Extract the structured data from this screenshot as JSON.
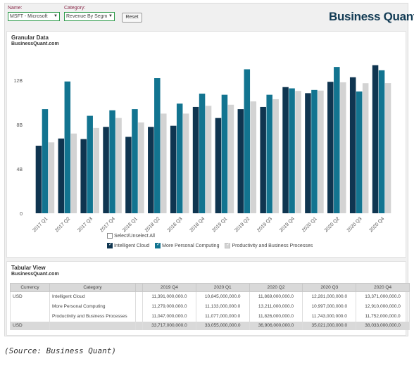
{
  "toolbar": {
    "name_label": "Name:",
    "name_value": "MSFT - Microsoft",
    "category_label": "Category:",
    "category_value": "Revenue By Segm",
    "reset_label": "Reset",
    "logo_text": "Business Quant"
  },
  "colors": {
    "intelligent_cloud": "#0f3550",
    "personal_computing": "#127490",
    "productivity": "#d3d3d3",
    "select_border": "#2e9a4a"
  },
  "chart_card": {
    "title": "Granular Data",
    "subtitle": "BusinessQuant.com",
    "select_all_label": "Select/Unselect All"
  },
  "chart_data": {
    "type": "bar",
    "title": "Granular Data",
    "categories": [
      "2017 Q1",
      "2017 Q2",
      "2017 Q3",
      "2017 Q4",
      "2018 Q1",
      "2018 Q2",
      "2018 Q3",
      "2018 Q4",
      "2019 Q1",
      "2019 Q2",
      "2019 Q3",
      "2019 Q4",
      "2020 Q1",
      "2020 Q2",
      "2020 Q3",
      "2020 Q4"
    ],
    "y_tick_labels": [
      "0",
      "4B",
      "8B",
      "12B"
    ],
    "y_ticks": [
      0,
      4000000000,
      8000000000,
      12000000000
    ],
    "ylim": [
      0,
      13600000000
    ],
    "legend_placement": "bottom",
    "series": [
      {
        "name": "Intelligent Cloud",
        "values": [
          6100000000,
          6750000000,
          6700000000,
          7800000000,
          6900000000,
          7800000000,
          7900000000,
          9600000000,
          8600000000,
          9400000000,
          9600000000,
          11391000000,
          10845000000,
          11869000000,
          12281000000,
          13371000000
        ]
      },
      {
        "name": "More Personal Computing",
        "values": [
          9400000000,
          11900000000,
          8800000000,
          9300000000,
          9400000000,
          12200000000,
          9900000000,
          10800000000,
          10700000000,
          13000000000,
          10700000000,
          11279000000,
          11133000000,
          13211000000,
          10997000000,
          12910000000
        ]
      },
      {
        "name": "Productivity and Business Processes",
        "values": [
          6400000000,
          7200000000,
          7700000000,
          8600000000,
          8200000000,
          9000000000,
          9000000000,
          9700000000,
          9800000000,
          10100000000,
          10300000000,
          11047000000,
          11077000000,
          11826000000,
          11743000000,
          11752000000
        ]
      }
    ]
  },
  "table_card": {
    "title": "Tabular View",
    "subtitle": "BusinessQuant.com",
    "headers": [
      "Currency",
      "Category",
      "",
      "2019 Q4",
      "2020 Q1",
      "2020 Q2",
      "2020 Q3",
      "2020 Q4"
    ],
    "rows": [
      {
        "currency": "USD",
        "category": "Intelligent Cloud",
        "values": [
          "11,391,000,000.0",
          "10,845,000,000.0",
          "11,869,000,000.0",
          "12,281,000,000.0",
          "13,371,000,000.0"
        ]
      },
      {
        "currency": "",
        "category": "More Personal Computing",
        "values": [
          "11,279,000,000.0",
          "11,133,000,000.0",
          "13,211,000,000.0",
          "10,997,000,000.0",
          "12,910,000,000.0"
        ]
      },
      {
        "currency": "",
        "category": "Productivity and Business Processes",
        "values": [
          "11,047,000,000.0",
          "11,077,000,000.0",
          "11,826,000,000.0",
          "11,743,000,000.0",
          "11,752,000,000.0"
        ]
      }
    ],
    "total": {
      "currency": "USD",
      "category": "",
      "values": [
        "33,717,000,000.0",
        "33,055,000,000.0",
        "36,906,000,000.0",
        "35,021,000,000.0",
        "38,033,000,000.0"
      ]
    }
  },
  "source_text": "(Source: Business Quant)"
}
